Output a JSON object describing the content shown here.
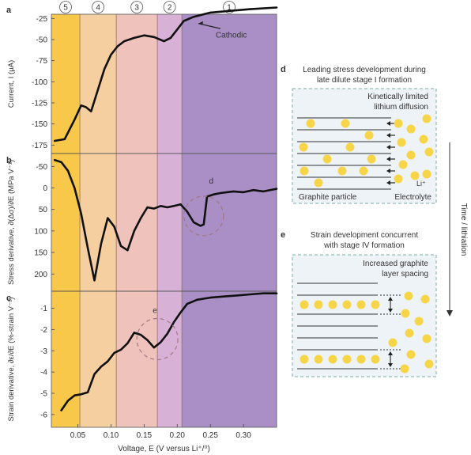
{
  "chart_data": [
    {
      "panel": "a",
      "type": "line",
      "ylabel": "Current, I (µA)",
      "xlim": [
        0.01,
        0.35
      ],
      "ylim": [
        -185,
        -20
      ],
      "yticks": [
        -25,
        -50,
        -75,
        -100,
        -125,
        -150,
        -175
      ],
      "annotation": "Cathodic",
      "stages": [
        "5",
        "4",
        "3",
        "2",
        "1"
      ],
      "stage_bounds": [
        0.01,
        0.053,
        0.108,
        0.17,
        0.207,
        0.35
      ],
      "stage_colors": [
        "#f7c84a",
        "#f5cfa0",
        "#f0c2bc",
        "#d8b2d6",
        "#a98fc6"
      ],
      "x": [
        0.015,
        0.03,
        0.045,
        0.055,
        0.062,
        0.07,
        0.08,
        0.09,
        0.1,
        0.11,
        0.12,
        0.135,
        0.15,
        0.165,
        0.18,
        0.19,
        0.2,
        0.21,
        0.225,
        0.25,
        0.28,
        0.31,
        0.35
      ],
      "y": [
        -170,
        -168,
        -145,
        -128,
        -130,
        -135,
        -110,
        -85,
        -68,
        -58,
        -52,
        -48,
        -45,
        -47,
        -52,
        -48,
        -38,
        -28,
        -23,
        -18,
        -16,
        -14,
        -12
      ]
    },
    {
      "panel": "b",
      "type": "line",
      "ylabel": "Stress derivative, ∂(Δσ)/∂E (MPa V⁻¹)",
      "xlim": [
        0.01,
        0.35
      ],
      "ylim": [
        240,
        -80
      ],
      "yticks": [
        -50,
        0,
        50,
        100,
        150,
        200
      ],
      "annotation": "d",
      "x": [
        0.015,
        0.025,
        0.035,
        0.045,
        0.055,
        0.065,
        0.075,
        0.085,
        0.095,
        0.105,
        0.115,
        0.125,
        0.135,
        0.145,
        0.155,
        0.165,
        0.175,
        0.185,
        0.195,
        0.205,
        0.215,
        0.225,
        0.235,
        0.24,
        0.245,
        0.255,
        0.265,
        0.275,
        0.285,
        0.3,
        0.315,
        0.33,
        0.35
      ],
      "y": [
        -65,
        -60,
        -40,
        0,
        60,
        140,
        215,
        130,
        70,
        90,
        135,
        145,
        100,
        70,
        45,
        48,
        42,
        45,
        42,
        38,
        55,
        80,
        88,
        85,
        20,
        15,
        12,
        10,
        8,
        10,
        5,
        8,
        2
      ]
    },
    {
      "panel": "c",
      "type": "line",
      "ylabel": "Strain derivative, ∂ε/∂E (%-strain V⁻¹)",
      "xlabel": "Voltage, E (V versus Li⁺/⁰)",
      "xlim": [
        0.01,
        0.35
      ],
      "ylim": [
        -6.6,
        -0.2
      ],
      "yticks": [
        -1,
        -2,
        -3,
        -4,
        -5,
        -6
      ],
      "xticks": [
        0.05,
        0.1,
        0.15,
        0.2,
        0.25,
        0.3
      ],
      "xticklabels": [
        "0.05",
        "0.10",
        "0.15",
        "0.20",
        "0.25",
        "0.30"
      ],
      "annotation": "e",
      "x": [
        0.025,
        0.035,
        0.045,
        0.055,
        0.065,
        0.075,
        0.085,
        0.095,
        0.105,
        0.115,
        0.125,
        0.135,
        0.145,
        0.155,
        0.165,
        0.175,
        0.185,
        0.195,
        0.205,
        0.215,
        0.23,
        0.25,
        0.27,
        0.29,
        0.31,
        0.33,
        0.35
      ],
      "y": [
        -5.8,
        -5.35,
        -5.1,
        -5.05,
        -4.95,
        -4.1,
        -3.75,
        -3.5,
        -3.1,
        -2.95,
        -2.65,
        -2.15,
        -2.25,
        -2.5,
        -2.85,
        -2.6,
        -2.2,
        -1.65,
        -1.2,
        -0.8,
        -0.6,
        -0.5,
        -0.45,
        -0.4,
        -0.35,
        -0.3,
        -0.3
      ]
    }
  ],
  "panel_labels": [
    "a",
    "b",
    "c",
    "d",
    "e"
  ],
  "diagram_d": {
    "title_line1": "Leading stress development during",
    "title_line2": "late dilute stage I formation",
    "note_line1": "Kinetically limited",
    "note_line2": "lithium diffusion",
    "label_left": "Graphite particle",
    "label_right": "Electrolyte",
    "ion_label": "Li⁺"
  },
  "diagram_e": {
    "title_line1": "Strain development concurrent",
    "title_line2": "with stage IV formation",
    "note_line1": "Increased graphite",
    "note_line2": "layer spacing"
  },
  "time_axis_label": "Time / lithiation",
  "colors": {
    "curve": "#111111",
    "ion": "#f6d548",
    "box_fill": "#eef3f8",
    "box_border": "#7aaea6",
    "dashed_circle": "#a07a80"
  }
}
